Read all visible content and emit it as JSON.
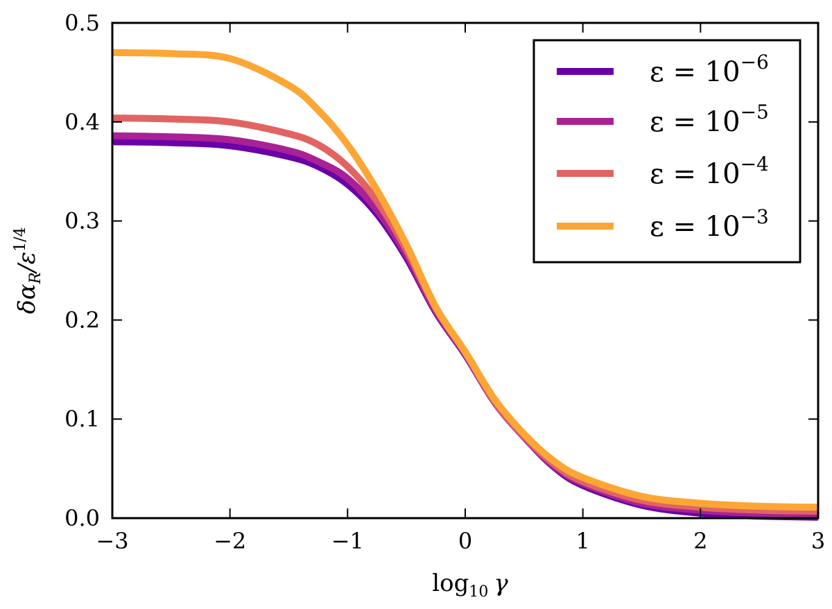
{
  "chart_data": {
    "type": "line",
    "title": "",
    "xlabel": {
      "base": "log",
      "sub": "10",
      "sym": "γ"
    },
    "ylabel": {
      "main": "δα",
      "sub": "R",
      "mid": "/ε",
      "sup": "1/4"
    },
    "xlim": [
      -3,
      3
    ],
    "ylim": [
      0,
      0.5
    ],
    "x_ticks": [
      -3,
      -2,
      -1,
      0,
      1,
      2,
      3
    ],
    "x_tick_labels": [
      "−3",
      "−2",
      "−1",
      "0",
      "1",
      "2",
      "3"
    ],
    "y_ticks": [
      0,
      0.1,
      0.2,
      0.3,
      0.4,
      0.5
    ],
    "y_tick_labels": [
      "0.0",
      "0.1",
      "0.2",
      "0.3",
      "0.4",
      "0.5"
    ],
    "grid": false,
    "legend_position": "top-right",
    "x": [
      -3,
      -2.5,
      -2,
      -1.5,
      -1.25,
      -1,
      -0.75,
      -0.5,
      -0.25,
      0,
      0.25,
      0.5,
      0.75,
      1,
      1.5,
      2,
      2.5,
      3
    ],
    "series": [
      {
        "name": "ε = 10",
        "exp": "−6",
        "color": "#6a00a8",
        "values": [
          0.38,
          0.379,
          0.376,
          0.365,
          0.355,
          0.337,
          0.307,
          0.263,
          0.208,
          0.165,
          0.117,
          0.082,
          0.052,
          0.033,
          0.013,
          0.005,
          0.002,
          0.001
        ]
      },
      {
        "name": "ε = 10",
        "exp": "−5",
        "color": "#a82296",
        "values": [
          0.386,
          0.385,
          0.382,
          0.371,
          0.36,
          0.343,
          0.311,
          0.266,
          0.209,
          0.166,
          0.117,
          0.082,
          0.053,
          0.035,
          0.015,
          0.008,
          0.005,
          0.004
        ]
      },
      {
        "name": "ε = 10",
        "exp": "−4",
        "color": "#e16462",
        "values": [
          0.404,
          0.403,
          0.4,
          0.388,
          0.377,
          0.355,
          0.32,
          0.271,
          0.212,
          0.167,
          0.118,
          0.083,
          0.055,
          0.037,
          0.018,
          0.011,
          0.008,
          0.007
        ]
      },
      {
        "name": "ε = 10",
        "exp": "−3",
        "color": "#fca636",
        "values": [
          0.47,
          0.469,
          0.464,
          0.437,
          0.412,
          0.377,
          0.331,
          0.276,
          0.213,
          0.168,
          0.12,
          0.085,
          0.058,
          0.041,
          0.022,
          0.015,
          0.012,
          0.011
        ]
      }
    ]
  }
}
